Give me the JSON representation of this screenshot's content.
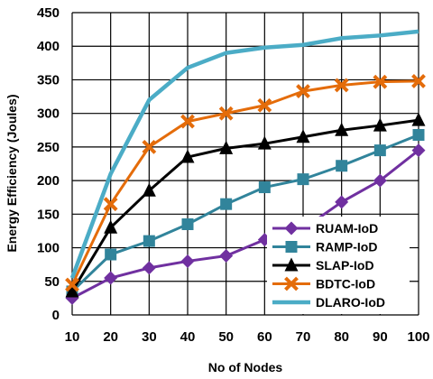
{
  "chart_data": {
    "type": "line",
    "xlabel": "No of Nodes",
    "ylabel": "Energy Efficiency (Joules)",
    "x": [
      10,
      20,
      30,
      40,
      50,
      60,
      70,
      80,
      90,
      100
    ],
    "xlim": [
      10,
      100
    ],
    "ylim": [
      0,
      450
    ],
    "yticks": [
      0,
      50,
      100,
      150,
      200,
      250,
      300,
      350,
      400,
      450
    ],
    "grid": true,
    "legend_position": "bottom-right",
    "series": [
      {
        "name": "RUAM-IoD",
        "color": "#7030A0",
        "marker": "diamond",
        "values": [
          25,
          55,
          70,
          80,
          88,
          112,
          128,
          168,
          200,
          245
        ]
      },
      {
        "name": "RAMP-IoD",
        "color": "#31849B",
        "marker": "square",
        "values": [
          35,
          90,
          110,
          135,
          165,
          190,
          202,
          222,
          245,
          268
        ]
      },
      {
        "name": "SLAP-IoD",
        "color": "#000000",
        "marker": "triangle",
        "values": [
          35,
          130,
          185,
          235,
          248,
          255,
          265,
          275,
          282,
          290
        ]
      },
      {
        "name": "BDTC-IoD",
        "color": "#E46C0A",
        "marker": "x",
        "values": [
          45,
          165,
          250,
          288,
          300,
          312,
          333,
          342,
          347,
          348
        ]
      },
      {
        "name": "DLARO-IoD",
        "color": "#4BACC6",
        "marker": "none",
        "values": [
          55,
          210,
          320,
          368,
          390,
          398,
          402,
          412,
          416,
          422
        ]
      }
    ]
  }
}
